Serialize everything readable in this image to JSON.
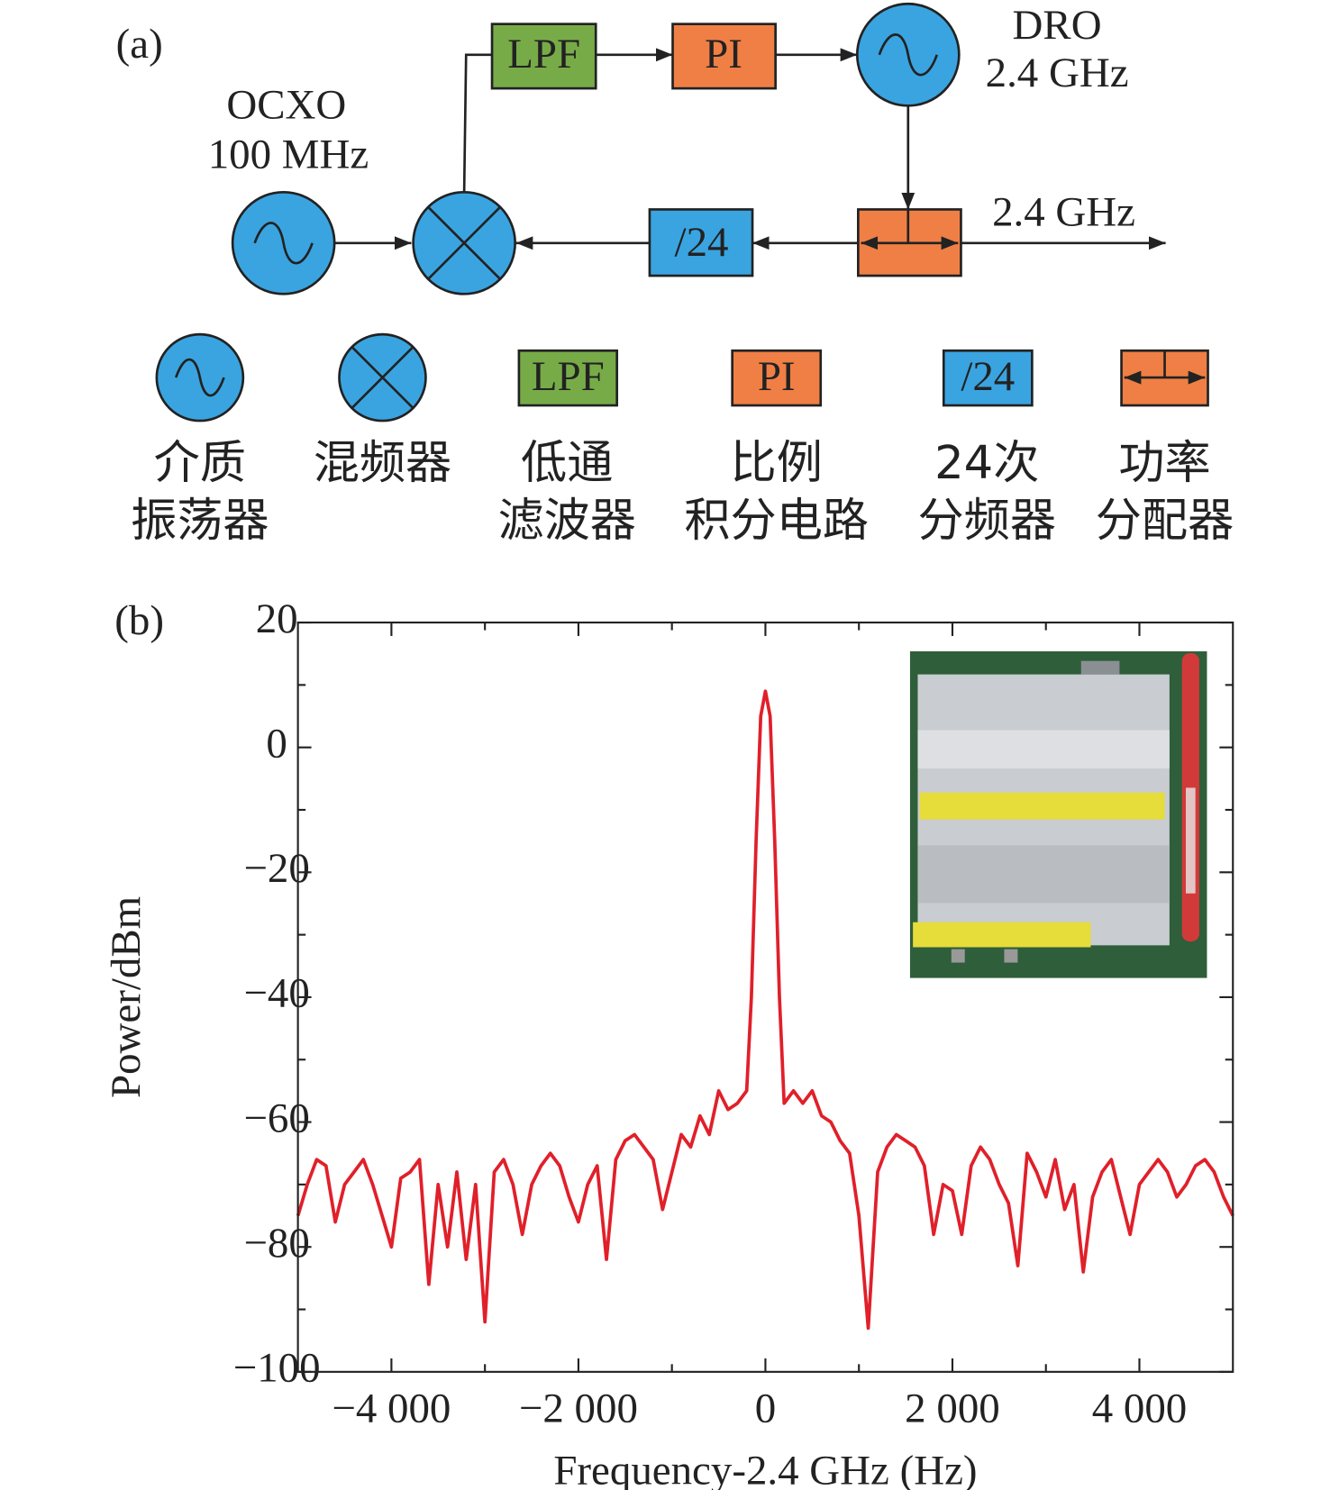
{
  "diagram": {
    "label": "(a)",
    "ocxo": [
      "OCXO",
      "100 MHz"
    ],
    "lpf": "LPF",
    "pi": "PI",
    "dro": [
      "DRO",
      "2.4 GHz"
    ],
    "divider": "/24",
    "output": "2.4 GHz",
    "legend": [
      {
        "lines": [
          "介质",
          "振荡器"
        ]
      },
      {
        "lines": [
          "混频器"
        ]
      },
      {
        "symbol": "LPF",
        "lines": [
          "低通",
          "滤波器"
        ]
      },
      {
        "symbol": "PI",
        "lines": [
          "比例",
          "积分电路"
        ]
      },
      {
        "symbol": "/24",
        "lines": [
          "24次",
          "分频器"
        ]
      },
      {
        "lines": [
          "功率",
          "分配器"
        ]
      }
    ]
  },
  "chart_data": {
    "type": "line",
    "panel_label": "(b)",
    "xlabel": "Frequency-2.4 GHz (Hz)",
    "ylabel": "Power/dBm",
    "xlim": [
      -5000,
      5000
    ],
    "ylim": [
      -100,
      20
    ],
    "xticks": [
      {
        "value": -4000,
        "label": "−4 000"
      },
      {
        "value": -2000,
        "label": "−2 000"
      },
      0,
      {
        "value": 2000,
        "label": "2 000"
      },
      {
        "value": 4000,
        "label": "4 000"
      }
    ],
    "xminorticks": [
      -3000,
      -1000,
      1000,
      3000
    ],
    "yticks": [
      {
        "value": -100,
        "label": "−100"
      },
      {
        "value": -80,
        "label": "−80"
      },
      {
        "value": -60,
        "label": "−60"
      },
      {
        "value": -40,
        "label": "−40"
      },
      {
        "value": -20,
        "label": "−20"
      },
      0,
      20
    ],
    "yminorticks": [
      -90,
      -70,
      -50,
      -30,
      -10,
      10
    ],
    "x": [
      -5000,
      -4900,
      -4800,
      -4700,
      -4600,
      -4500,
      -4400,
      -4300,
      -4200,
      -4100,
      -4000,
      -3900,
      -3800,
      -3700,
      -3600,
      -3500,
      -3400,
      -3300,
      -3200,
      -3100,
      -3000,
      -2900,
      -2800,
      -2700,
      -2600,
      -2500,
      -2400,
      -2300,
      -2200,
      -2100,
      -2000,
      -1900,
      -1800,
      -1700,
      -1600,
      -1500,
      -1400,
      -1300,
      -1200,
      -1100,
      -1000,
      -900,
      -800,
      -700,
      -600,
      -500,
      -400,
      -300,
      -200,
      -150,
      -100,
      -50,
      0,
      50,
      100,
      150,
      200,
      300,
      400,
      500,
      600,
      700,
      800,
      900,
      1000,
      1100,
      1200,
      1300,
      1400,
      1500,
      1600,
      1700,
      1800,
      1900,
      2000,
      2100,
      2200,
      2300,
      2400,
      2500,
      2600,
      2700,
      2800,
      2900,
      3000,
      3100,
      3200,
      3300,
      3400,
      3500,
      3600,
      3700,
      3800,
      3900,
      4000,
      4100,
      4200,
      4300,
      4400,
      4500,
      4600,
      4700,
      4800,
      4900,
      5000
    ],
    "series": [
      {
        "name": "spectrum",
        "color": "#e0202a",
        "values": [
          -75,
          -70,
          -66,
          -67,
          -76,
          -70,
          -68,
          -66,
          -70,
          -75,
          -80,
          -69,
          -68,
          -66,
          -86,
          -70,
          -80,
          -68,
          -82,
          -70,
          -92,
          -68,
          -66,
          -70,
          -78,
          -70,
          -67,
          -65,
          -67,
          -72,
          -76,
          -70,
          -67,
          -82,
          -66,
          -63,
          -62,
          -64,
          -66,
          -74,
          -68,
          -62,
          -64,
          -59,
          -62,
          -55,
          -58,
          -57,
          -55,
          -40,
          -15,
          5,
          9,
          5,
          -15,
          -40,
          -57,
          -55,
          -57,
          -55,
          -59,
          -60,
          -63,
          -65,
          -75,
          -93,
          -68,
          -64,
          -62,
          -63,
          -64,
          -67,
          -78,
          -70,
          -71,
          -78,
          -67,
          -64,
          -66,
          -70,
          -73,
          -83,
          -65,
          -68,
          -72,
          -66,
          -74,
          -70,
          -84,
          -72,
          -68,
          -66,
          -72,
          -78,
          -70,
          -68,
          -66,
          -68,
          -72,
          -70,
          -67,
          -66,
          -68,
          -72,
          -75
        ]
      }
    ]
  }
}
